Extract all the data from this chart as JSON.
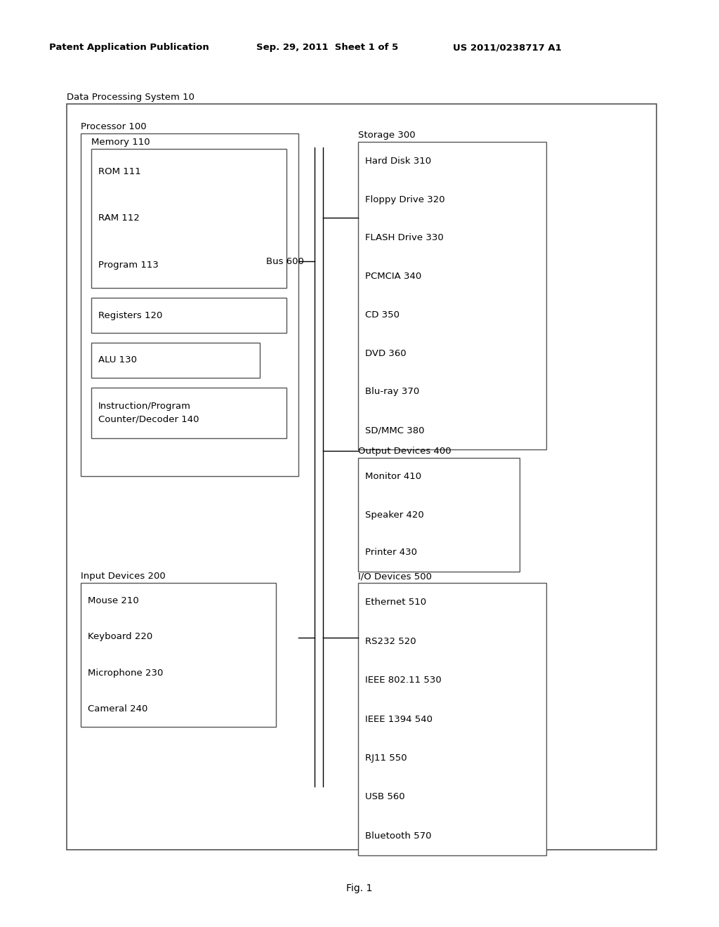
{
  "header_left": "Patent Application Publication",
  "header_mid": "Sep. 29, 2011  Sheet 1 of 5",
  "header_right": "US 2011/0238717 A1",
  "footer": "Fig. 1",
  "bg_color": "#ffffff",
  "outer_label": "Data Processing System 10",
  "processor_label": "Processor 100",
  "memory_label": "Memory 110",
  "memory_items": [
    "ROM 111",
    "RAM 112",
    "Program 113"
  ],
  "registers_label": "Registers 120",
  "alu_label": "ALU 130",
  "ipcd_label": "Instruction/Program\nCounter/Decoder 140",
  "bus_label": "Bus 600",
  "storage_label": "Storage 300",
  "storage_items": [
    "Hard Disk 310",
    "Floppy Drive 320",
    "FLASH Drive 330",
    "PCMCIA 340",
    "CD 350",
    "DVD 360",
    "Blu-ray 370",
    "SD/MMC 380"
  ],
  "output_label": "Output Devices 400",
  "output_items": [
    "Monitor 410",
    "Speaker 420",
    "Printer 430"
  ],
  "input_label": "Input Devices 200",
  "input_items": [
    "Mouse 210",
    "Keyboard 220",
    "Microphone 230",
    "Cameral 240"
  ],
  "io_label": "I/O Devices 500",
  "io_items": [
    "Ethernet 510",
    "RS232 520",
    "IEEE 802.11 530",
    "IEEE 1394 540",
    "RJ11 550",
    "USB 560",
    "Bluetooth 570"
  ]
}
